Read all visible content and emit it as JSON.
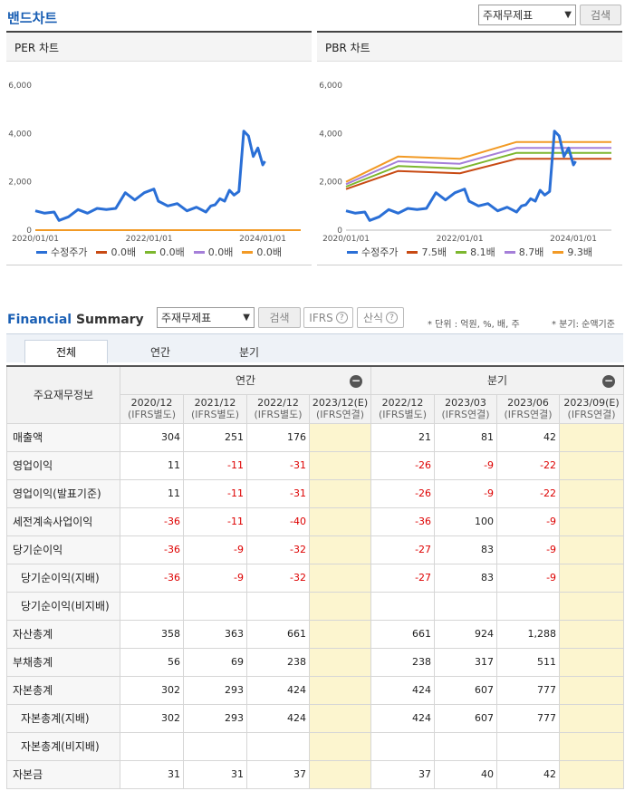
{
  "band": {
    "title": "밴드차트",
    "select_value": "주재무제표",
    "search_label": "검색"
  },
  "per_chart": {
    "title": "PER 차트",
    "legend": [
      {
        "label": "수정주가",
        "color": "#2a6fd6"
      },
      {
        "label": "0.0배",
        "color": "#c84a13"
      },
      {
        "label": "0.0배",
        "color": "#7db72f"
      },
      {
        "label": "0.0배",
        "color": "#a57fd9"
      },
      {
        "label": "0.0배",
        "color": "#f29a25"
      }
    ]
  },
  "pbr_chart": {
    "title": "PBR 차트",
    "legend": [
      {
        "label": "수정주가",
        "color": "#2a6fd6"
      },
      {
        "label": "7.5배",
        "color": "#c84a13"
      },
      {
        "label": "8.1배",
        "color": "#7db72f"
      },
      {
        "label": "8.7배",
        "color": "#a57fd9"
      },
      {
        "label": "9.3배",
        "color": "#f29a25"
      }
    ]
  },
  "chart_data": [
    {
      "type": "line",
      "title": "PER 차트",
      "y_ticks": [
        "6,000",
        "4,000",
        "2,000",
        "0"
      ],
      "x_ticks": [
        "2020/01/01",
        "2022/01/01",
        "2024/01/01"
      ],
      "ylim": [
        0,
        6000
      ],
      "x_domain": [
        "2020/01/01",
        "2024/09/01"
      ],
      "series": [
        {
          "name": "수정주가",
          "color": "#2a6fd6",
          "points": [
            [
              "2020/01/01",
              800
            ],
            [
              "2020/03/01",
              700
            ],
            [
              "2020/05/01",
              750
            ],
            [
              "2020/06/01",
              400
            ],
            [
              "2020/08/01",
              550
            ],
            [
              "2020/10/01",
              850
            ],
            [
              "2020/12/01",
              700
            ],
            [
              "2021/02/01",
              900
            ],
            [
              "2021/04/01",
              850
            ],
            [
              "2021/06/01",
              900
            ],
            [
              "2021/08/01",
              1550
            ],
            [
              "2021/10/01",
              1250
            ],
            [
              "2021/12/01",
              1550
            ],
            [
              "2022/02/01",
              1700
            ],
            [
              "2022/03/01",
              1200
            ],
            [
              "2022/05/01",
              1000
            ],
            [
              "2022/07/01",
              1100
            ],
            [
              "2022/09/01",
              800
            ],
            [
              "2022/11/01",
              950
            ],
            [
              "2023/01/01",
              750
            ],
            [
              "2023/02/01",
              1000
            ],
            [
              "2023/03/01",
              1050
            ],
            [
              "2023/04/01",
              1300
            ],
            [
              "2023/05/01",
              1200
            ],
            [
              "2023/06/01",
              1650
            ],
            [
              "2023/07/01",
              1450
            ],
            [
              "2023/08/01",
              1600
            ],
            [
              "2023/09/01",
              4100
            ],
            [
              "2023/10/01",
              3900
            ],
            [
              "2023/11/01",
              3050
            ],
            [
              "2023/12/01",
              3400
            ],
            [
              "2024/01/01",
              2700
            ],
            [
              "2024/01/15",
              2850
            ]
          ]
        },
        {
          "name": "0.0배",
          "color": "#c84a13",
          "points": [
            [
              "2020/01/01",
              0
            ],
            [
              "2024/09/01",
              0
            ]
          ]
        },
        {
          "name": "0.0배",
          "color": "#7db72f",
          "points": [
            [
              "2020/01/01",
              0
            ],
            [
              "2024/09/01",
              0
            ]
          ]
        },
        {
          "name": "0.0배",
          "color": "#a57fd9",
          "points": [
            [
              "2020/01/01",
              0
            ],
            [
              "2024/09/01",
              0
            ]
          ]
        },
        {
          "name": "0.0배",
          "color": "#f29a25",
          "points": [
            [
              "2020/01/01",
              0
            ],
            [
              "2024/09/01",
              0
            ]
          ]
        }
      ]
    },
    {
      "type": "line",
      "title": "PBR 차트",
      "y_ticks": [
        "6,000",
        "4,000",
        "2,000",
        "0"
      ],
      "x_ticks": [
        "2020/01/01",
        "2022/01/01",
        "2024/01/01"
      ],
      "ylim": [
        0,
        6000
      ],
      "x_domain": [
        "2020/01/01",
        "2024/09/01"
      ],
      "series": [
        {
          "name": "수정주가",
          "color": "#2a6fd6",
          "points": [
            [
              "2020/01/01",
              800
            ],
            [
              "2020/03/01",
              700
            ],
            [
              "2020/05/01",
              750
            ],
            [
              "2020/06/01",
              400
            ],
            [
              "2020/08/01",
              550
            ],
            [
              "2020/10/01",
              850
            ],
            [
              "2020/12/01",
              700
            ],
            [
              "2021/02/01",
              900
            ],
            [
              "2021/04/01",
              850
            ],
            [
              "2021/06/01",
              900
            ],
            [
              "2021/08/01",
              1550
            ],
            [
              "2021/10/01",
              1250
            ],
            [
              "2021/12/01",
              1550
            ],
            [
              "2022/02/01",
              1700
            ],
            [
              "2022/03/01",
              1200
            ],
            [
              "2022/05/01",
              1000
            ],
            [
              "2022/07/01",
              1100
            ],
            [
              "2022/09/01",
              800
            ],
            [
              "2022/11/01",
              950
            ],
            [
              "2023/01/01",
              750
            ],
            [
              "2023/02/01",
              1000
            ],
            [
              "2023/03/01",
              1050
            ],
            [
              "2023/04/01",
              1300
            ],
            [
              "2023/05/01",
              1200
            ],
            [
              "2023/06/01",
              1650
            ],
            [
              "2023/07/01",
              1450
            ],
            [
              "2023/08/01",
              1600
            ],
            [
              "2023/09/01",
              4100
            ],
            [
              "2023/10/01",
              3900
            ],
            [
              "2023/11/01",
              3050
            ],
            [
              "2023/12/01",
              3400
            ],
            [
              "2024/01/01",
              2700
            ],
            [
              "2024/01/15",
              2850
            ]
          ]
        },
        {
          "name": "7.5배",
          "color": "#c84a13",
          "points": [
            [
              "2020/01/01",
              1700
            ],
            [
              "2020/12/01",
              2450
            ],
            [
              "2022/01/01",
              2350
            ],
            [
              "2023/01/01",
              2950
            ],
            [
              "2024/09/01",
              2950
            ]
          ]
        },
        {
          "name": "8.1배",
          "color": "#7db72f",
          "points": [
            [
              "2020/01/01",
              1800
            ],
            [
              "2020/12/01",
              2650
            ],
            [
              "2022/01/01",
              2550
            ],
            [
              "2023/01/01",
              3200
            ],
            [
              "2024/09/01",
              3200
            ]
          ]
        },
        {
          "name": "8.7배",
          "color": "#a57fd9",
          "points": [
            [
              "2020/01/01",
              1900
            ],
            [
              "2020/12/01",
              2850
            ],
            [
              "2022/01/01",
              2750
            ],
            [
              "2023/01/01",
              3400
            ],
            [
              "2024/09/01",
              3400
            ]
          ]
        },
        {
          "name": "9.3배",
          "color": "#f29a25",
          "points": [
            [
              "2020/01/01",
              2000
            ],
            [
              "2020/12/01",
              3050
            ],
            [
              "2022/01/01",
              2950
            ],
            [
              "2023/01/01",
              3650
            ],
            [
              "2024/09/01",
              3650
            ]
          ]
        }
      ]
    }
  ],
  "summary": {
    "title_blue": "Financial",
    "title_rest": "Summary",
    "select_value": "주재무제표",
    "search_label": "검색",
    "ifrs_label": "IFRS",
    "formula_label": "산식",
    "help_mark": "?",
    "unit_note": "* 단위 : 억원, %, 배, 주",
    "quarter_note": "* 분기: 순액기준",
    "tabs": [
      "전체",
      "연간",
      "분기"
    ],
    "label_header": "주요재무정보",
    "annual_label": "연간",
    "quarter_label": "분기",
    "collapse_mark": "−",
    "periods": [
      {
        "date": "2020/12",
        "std": "(IFRS별도)"
      },
      {
        "date": "2021/12",
        "std": "(IFRS별도)"
      },
      {
        "date": "2022/12",
        "std": "(IFRS별도)"
      },
      {
        "date": "2023/12(E)",
        "std": "(IFRS연결)"
      },
      {
        "date": "2022/12",
        "std": "(IFRS별도)"
      },
      {
        "date": "2023/03",
        "std": "(IFRS연결)"
      },
      {
        "date": "2023/06",
        "std": "(IFRS연결)"
      },
      {
        "date": "2023/09(E)",
        "std": "(IFRS연결)"
      }
    ],
    "rows": [
      {
        "label": "매출액",
        "indent": false,
        "values": [
          "304",
          "251",
          "176",
          "",
          "21",
          "81",
          "42",
          ""
        ]
      },
      {
        "label": "영업이익",
        "indent": false,
        "values": [
          "11",
          "-11",
          "-31",
          "",
          "-26",
          "-9",
          "-22",
          ""
        ]
      },
      {
        "label": "영업이익(발표기준)",
        "indent": false,
        "values": [
          "11",
          "-11",
          "-31",
          "",
          "-26",
          "-9",
          "-22",
          ""
        ]
      },
      {
        "label": "세전계속사업이익",
        "indent": false,
        "values": [
          "-36",
          "-11",
          "-40",
          "",
          "-36",
          "100",
          "-9",
          ""
        ]
      },
      {
        "label": "당기순이익",
        "indent": false,
        "values": [
          "-36",
          "-9",
          "-32",
          "",
          "-27",
          "83",
          "-9",
          ""
        ]
      },
      {
        "label": "당기순이익(지배)",
        "indent": true,
        "values": [
          "-36",
          "-9",
          "-32",
          "",
          "-27",
          "83",
          "-9",
          ""
        ]
      },
      {
        "label": "당기순이익(비지배)",
        "indent": true,
        "values": [
          "",
          "",
          "",
          "",
          "",
          "",
          "",
          ""
        ]
      },
      {
        "label": "자산총계",
        "indent": false,
        "values": [
          "358",
          "363",
          "661",
          "",
          "661",
          "924",
          "1,288",
          ""
        ]
      },
      {
        "label": "부채총계",
        "indent": false,
        "values": [
          "56",
          "69",
          "238",
          "",
          "238",
          "317",
          "511",
          ""
        ]
      },
      {
        "label": "자본총계",
        "indent": false,
        "values": [
          "302",
          "293",
          "424",
          "",
          "424",
          "607",
          "777",
          ""
        ]
      },
      {
        "label": "자본총계(지배)",
        "indent": true,
        "values": [
          "302",
          "293",
          "424",
          "",
          "424",
          "607",
          "777",
          ""
        ]
      },
      {
        "label": "자본총계(비지배)",
        "indent": true,
        "values": [
          "",
          "",
          "",
          "",
          "",
          "",
          "",
          ""
        ]
      },
      {
        "label": "자본금",
        "indent": false,
        "values": [
          "31",
          "31",
          "37",
          "",
          "37",
          "40",
          "42",
          ""
        ]
      }
    ]
  }
}
